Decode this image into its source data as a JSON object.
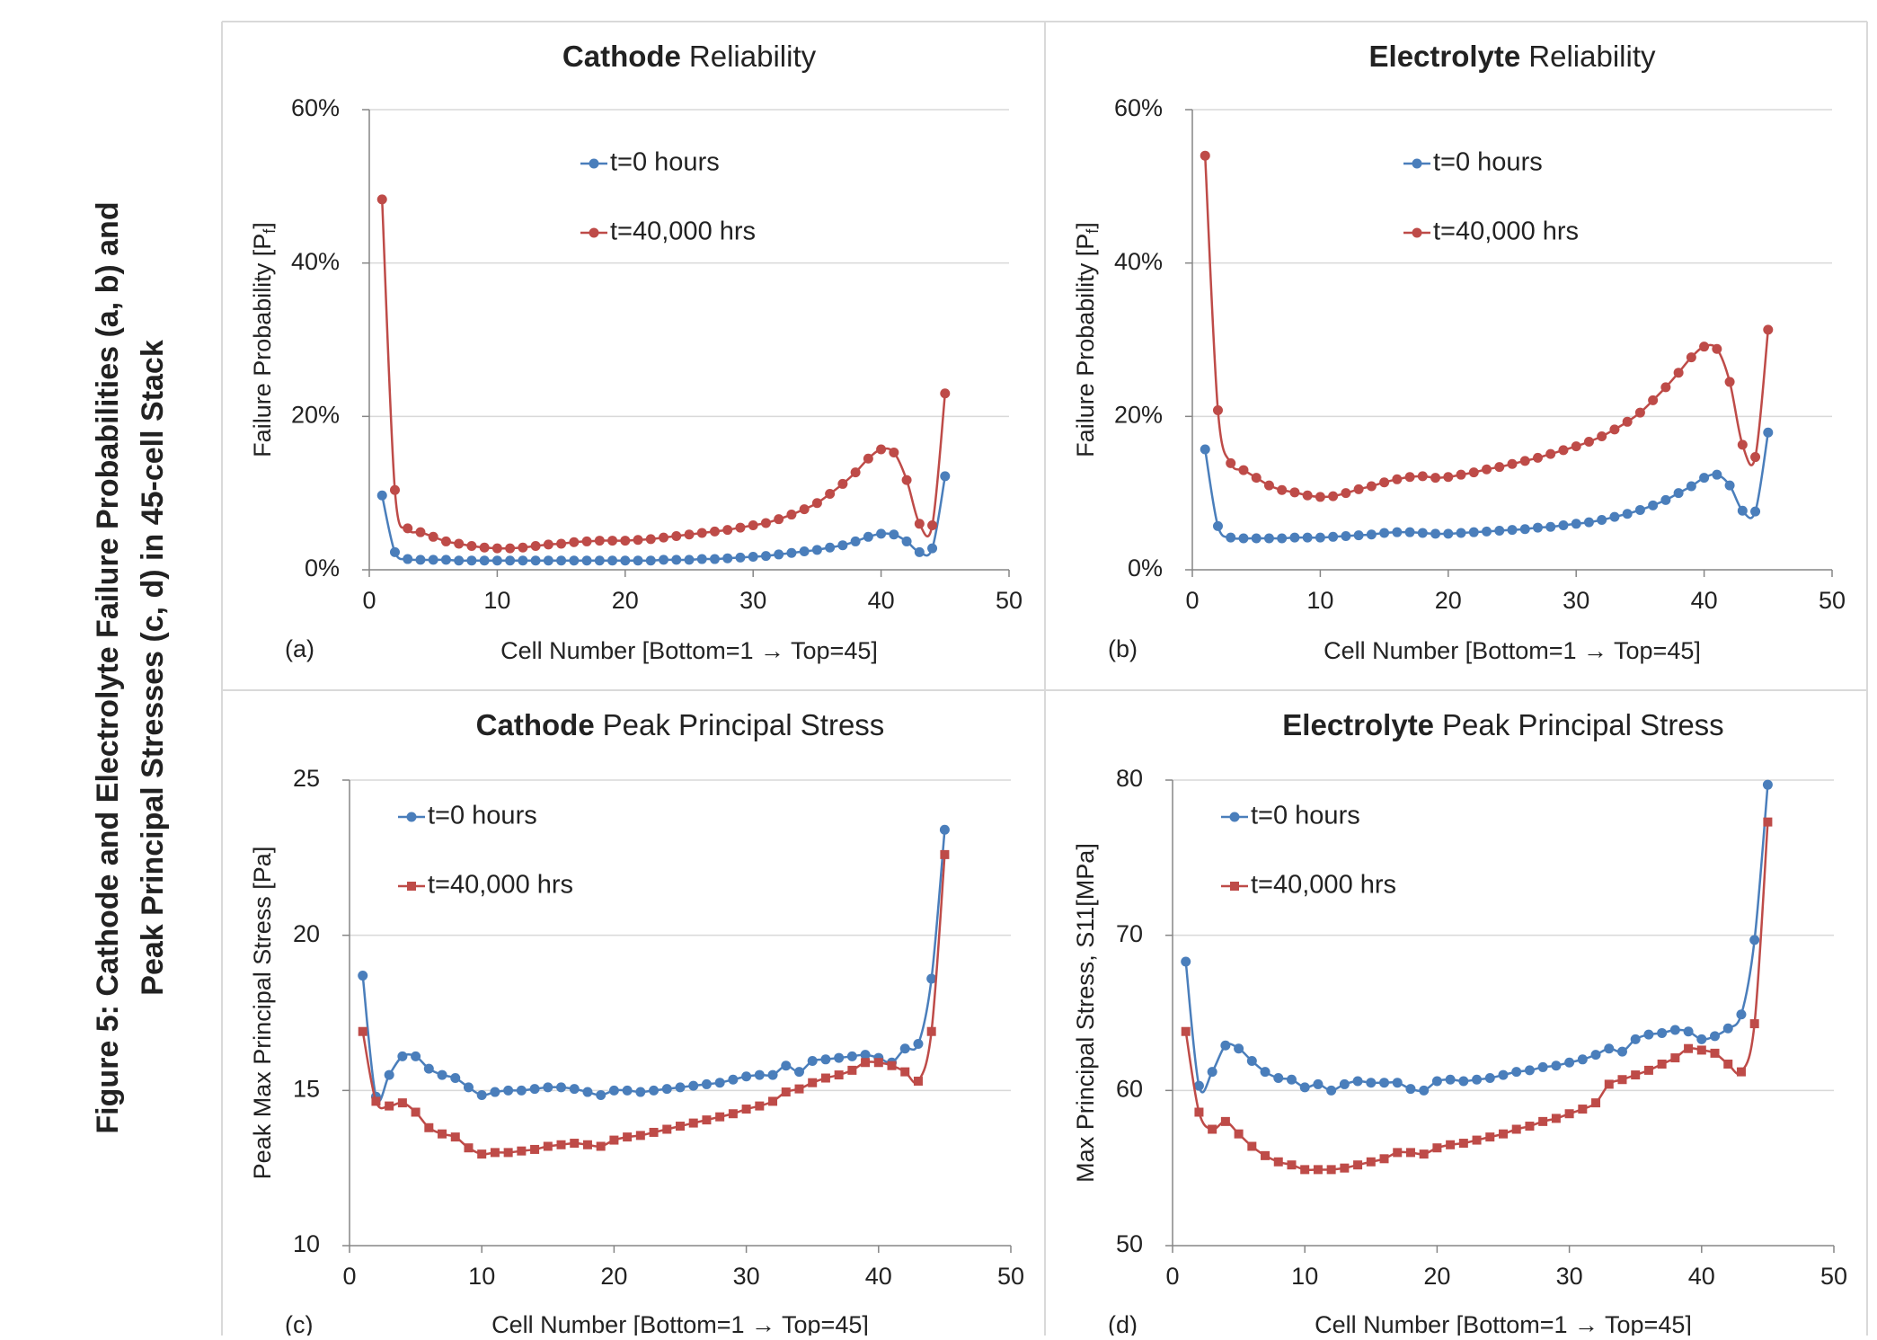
{
  "caption": [
    "Figure 5: Cathode and Electrolyte  Failure Probabilities (a, b) and",
    "Peak Principal Stresses (c, d) in 45-cell Stack"
  ],
  "chart_data": [
    {
      "type": "line",
      "panel_label": "(a)",
      "title_parts": [
        "Cathode",
        "Reliability"
      ],
      "xlabel": "Cell Number [Bottom=1 → Top=45]",
      "ylabel": {
        "text": "Failure Probability [P",
        "subscript": "f",
        "suffix": "]"
      },
      "xlim": [
        0,
        50
      ],
      "xticks": [
        0,
        10,
        20,
        30,
        40,
        50
      ],
      "ylim": [
        0,
        60
      ],
      "yticks": [
        {
          "value": 0,
          "label": "0%"
        },
        {
          "value": 20,
          "label": "20%"
        },
        {
          "value": 40,
          "label": "40%"
        },
        {
          "value": 60,
          "label": "60%"
        }
      ],
      "grid": true,
      "x": [
        1,
        2,
        3,
        4,
        5,
        6,
        7,
        8,
        9,
        10,
        11,
        12,
        13,
        14,
        15,
        16,
        17,
        18,
        19,
        20,
        21,
        22,
        23,
        24,
        25,
        26,
        27,
        28,
        29,
        30,
        31,
        32,
        33,
        34,
        35,
        36,
        37,
        38,
        39,
        40,
        41,
        42,
        43,
        44,
        45
      ],
      "series": [
        {
          "name": "t=0 hours",
          "color": "#4a7ebb",
          "marker": "circle",
          "values": [
            9.7,
            2.3,
            1.4,
            1.3,
            1.3,
            1.3,
            1.2,
            1.2,
            1.2,
            1.2,
            1.2,
            1.2,
            1.2,
            1.2,
            1.2,
            1.2,
            1.2,
            1.2,
            1.2,
            1.2,
            1.2,
            1.2,
            1.3,
            1.3,
            1.3,
            1.4,
            1.4,
            1.5,
            1.6,
            1.7,
            1.8,
            2.0,
            2.2,
            2.4,
            2.6,
            2.9,
            3.2,
            3.7,
            4.3,
            4.7,
            4.6,
            3.7,
            2.3,
            2.8,
            12.2
          ]
        },
        {
          "name": "t=40,000 hrs",
          "color": "#be4b48",
          "marker": "circle",
          "values": [
            48.3,
            10.4,
            5.4,
            4.9,
            4.3,
            3.7,
            3.4,
            3.1,
            2.9,
            2.8,
            2.8,
            2.9,
            3.1,
            3.3,
            3.4,
            3.6,
            3.7,
            3.8,
            3.8,
            3.8,
            3.9,
            4.0,
            4.2,
            4.4,
            4.6,
            4.8,
            5.0,
            5.2,
            5.5,
            5.8,
            6.1,
            6.6,
            7.2,
            7.9,
            8.7,
            9.9,
            11.2,
            12.7,
            14.5,
            15.7,
            15.3,
            11.7,
            6.0,
            5.8,
            23.0
          ]
        }
      ]
    },
    {
      "type": "line",
      "panel_label": "(b)",
      "title_parts": [
        "Electrolyte",
        "Reliability"
      ],
      "xlabel": "Cell Number [Bottom=1 → Top=45]",
      "ylabel": {
        "text": "Failure Probability [P",
        "subscript": "f",
        "suffix": "]"
      },
      "xlim": [
        0,
        50
      ],
      "xticks": [
        0,
        10,
        20,
        30,
        40,
        50
      ],
      "ylim": [
        0,
        60
      ],
      "yticks": [
        {
          "value": 0,
          "label": "0%"
        },
        {
          "value": 20,
          "label": "20%"
        },
        {
          "value": 40,
          "label": "40%"
        },
        {
          "value": 60,
          "label": "60%"
        }
      ],
      "grid": true,
      "x": [
        1,
        2,
        3,
        4,
        5,
        6,
        7,
        8,
        9,
        10,
        11,
        12,
        13,
        14,
        15,
        16,
        17,
        18,
        19,
        20,
        21,
        22,
        23,
        24,
        25,
        26,
        27,
        28,
        29,
        30,
        31,
        32,
        33,
        34,
        35,
        36,
        37,
        38,
        39,
        40,
        41,
        42,
        43,
        44,
        45
      ],
      "series": [
        {
          "name": "t=0 hours",
          "color": "#4a7ebb",
          "marker": "circle",
          "values": [
            15.7,
            5.7,
            4.2,
            4.1,
            4.1,
            4.1,
            4.1,
            4.2,
            4.2,
            4.2,
            4.3,
            4.4,
            4.5,
            4.6,
            4.8,
            4.9,
            4.9,
            4.8,
            4.7,
            4.7,
            4.8,
            4.9,
            5.0,
            5.1,
            5.2,
            5.3,
            5.5,
            5.6,
            5.8,
            6.0,
            6.2,
            6.5,
            6.9,
            7.3,
            7.8,
            8.4,
            9.1,
            10.0,
            10.9,
            12.0,
            12.4,
            11.0,
            7.7,
            7.6,
            17.9
          ]
        },
        {
          "name": "t=40,000 hrs",
          "color": "#be4b48",
          "marker": "circle",
          "values": [
            54.0,
            20.8,
            13.9,
            13.0,
            12.0,
            11.0,
            10.4,
            10.1,
            9.7,
            9.5,
            9.6,
            10.0,
            10.5,
            10.9,
            11.4,
            11.8,
            12.1,
            12.2,
            12.0,
            12.1,
            12.4,
            12.7,
            13.1,
            13.4,
            13.8,
            14.2,
            14.6,
            15.1,
            15.6,
            16.1,
            16.7,
            17.4,
            18.3,
            19.3,
            20.5,
            22.1,
            23.8,
            25.7,
            27.7,
            29.1,
            28.8,
            24.5,
            16.3,
            14.7,
            31.3
          ]
        }
      ]
    },
    {
      "type": "line",
      "panel_label": "(c)",
      "title_parts": [
        "Cathode",
        "Peak Principal Stress"
      ],
      "xlabel": "Cell Number [Bottom=1 → Top=45]",
      "ylabel": "Peak Max Principal Stress [Pa]",
      "xlim": [
        0,
        50
      ],
      "xticks": [
        0,
        10,
        20,
        30,
        40,
        50
      ],
      "ylim": [
        10,
        25
      ],
      "yticks": [
        10,
        15,
        20,
        25
      ],
      "grid": true,
      "x": [
        1,
        2,
        3,
        4,
        5,
        6,
        7,
        8,
        9,
        10,
        11,
        12,
        13,
        14,
        15,
        16,
        17,
        18,
        19,
        20,
        21,
        22,
        23,
        24,
        25,
        26,
        27,
        28,
        29,
        30,
        31,
        32,
        33,
        34,
        35,
        36,
        37,
        38,
        39,
        40,
        41,
        42,
        43,
        44,
        45
      ],
      "series": [
        {
          "name": "t=0 hours",
          "color": "#4a7ebb",
          "marker": "circle",
          "values": [
            18.7,
            14.8,
            15.5,
            16.1,
            16.1,
            15.7,
            15.5,
            15.4,
            15.1,
            14.85,
            14.95,
            15.0,
            15.0,
            15.05,
            15.1,
            15.1,
            15.05,
            14.95,
            14.85,
            15.0,
            15.0,
            14.95,
            15.0,
            15.05,
            15.1,
            15.15,
            15.2,
            15.25,
            15.35,
            15.45,
            15.5,
            15.5,
            15.8,
            15.6,
            15.95,
            16.0,
            16.05,
            16.1,
            16.15,
            16.05,
            15.9,
            16.35,
            16.5,
            18.6,
            23.4
          ]
        },
        {
          "name": "t=40,000 hrs",
          "color": "#be4b48",
          "marker": "square",
          "values": [
            16.9,
            14.65,
            14.5,
            14.6,
            14.3,
            13.8,
            13.6,
            13.5,
            13.15,
            12.95,
            13.0,
            13.0,
            13.05,
            13.1,
            13.2,
            13.25,
            13.3,
            13.25,
            13.2,
            13.4,
            13.5,
            13.55,
            13.65,
            13.75,
            13.85,
            13.95,
            14.05,
            14.15,
            14.25,
            14.4,
            14.5,
            14.65,
            14.95,
            15.05,
            15.25,
            15.4,
            15.5,
            15.65,
            15.9,
            15.9,
            15.8,
            15.6,
            15.3,
            16.9,
            22.6
          ]
        }
      ]
    },
    {
      "type": "line",
      "panel_label": "(d)",
      "title_parts": [
        "Electrolyte",
        "Peak Principal Stress"
      ],
      "xlabel": "Cell Number [Bottom=1 → Top=45]",
      "ylabel": "Max Principal Stress, S11[MPa]",
      "xlim": [
        0,
        50
      ],
      "xticks": [
        0,
        10,
        20,
        30,
        40,
        50
      ],
      "ylim": [
        50,
        80
      ],
      "yticks": [
        50,
        60,
        70,
        80
      ],
      "grid": true,
      "x": [
        1,
        2,
        3,
        4,
        5,
        6,
        7,
        8,
        9,
        10,
        11,
        12,
        13,
        14,
        15,
        16,
        17,
        18,
        19,
        20,
        21,
        22,
        23,
        24,
        25,
        26,
        27,
        28,
        29,
        30,
        31,
        32,
        33,
        34,
        35,
        36,
        37,
        38,
        39,
        40,
        41,
        42,
        43,
        44,
        45
      ],
      "series": [
        {
          "name": "t=0 hours",
          "color": "#4a7ebb",
          "marker": "circle",
          "values": [
            68.3,
            60.3,
            61.2,
            62.9,
            62.7,
            61.9,
            61.2,
            60.8,
            60.7,
            60.2,
            60.4,
            60.0,
            60.4,
            60.6,
            60.5,
            60.5,
            60.5,
            60.1,
            60.0,
            60.6,
            60.7,
            60.6,
            60.7,
            60.8,
            61.0,
            61.2,
            61.3,
            61.5,
            61.6,
            61.8,
            62.0,
            62.3,
            62.7,
            62.5,
            63.3,
            63.6,
            63.7,
            63.9,
            63.8,
            63.3,
            63.5,
            64.0,
            64.9,
            69.7,
            79.7
          ]
        },
        {
          "name": "t=40,000 hrs",
          "color": "#be4b48",
          "marker": "square",
          "values": [
            63.8,
            58.6,
            57.5,
            58.0,
            57.2,
            56.4,
            55.8,
            55.4,
            55.2,
            54.9,
            54.9,
            54.9,
            55.0,
            55.2,
            55.4,
            55.6,
            56.0,
            56.0,
            55.9,
            56.3,
            56.5,
            56.6,
            56.8,
            57.0,
            57.2,
            57.5,
            57.7,
            58.0,
            58.2,
            58.5,
            58.8,
            59.2,
            60.4,
            60.7,
            61.0,
            61.3,
            61.7,
            62.1,
            62.7,
            62.6,
            62.4,
            61.7,
            61.2,
            64.3,
            77.3
          ]
        }
      ]
    }
  ]
}
